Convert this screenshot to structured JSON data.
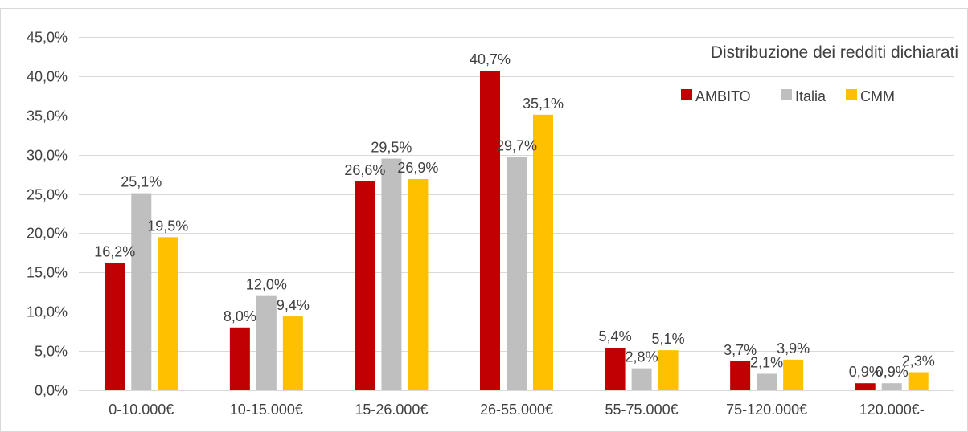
{
  "chart_data": {
    "type": "bar",
    "title": "Distribuzione dei redditi dichiarati",
    "xlabel": "",
    "ylabel": "",
    "ylim": [
      0,
      45
    ],
    "y_ticks": [
      "0,0%",
      "5,0%",
      "10,0%",
      "15,0%",
      "20,0%",
      "25,0%",
      "30,0%",
      "35,0%",
      "40,0%",
      "45,0%"
    ],
    "categories": [
      "0-10.000€",
      "10-15.000€",
      "15-26.000€",
      "26-55.000€",
      "55-75.000€",
      "75-120.000€",
      "120.000€-"
    ],
    "series": [
      {
        "name": "AMBITO",
        "color": "#c00000",
        "values": [
          16.2,
          8.0,
          26.6,
          40.7,
          5.4,
          3.7,
          0.9
        ],
        "labels": [
          "16,2%",
          "8,0%",
          "26,6%",
          "40,7%",
          "5,4%",
          "3,7%",
          "0,9%"
        ]
      },
      {
        "name": "Italia",
        "color": "#bfbfbf",
        "values": [
          25.1,
          12.0,
          29.5,
          29.7,
          2.8,
          2.1,
          0.9
        ],
        "labels": [
          "25,1%",
          "12,0%",
          "29,5%",
          "29,7%",
          "2,8%",
          "2,1%",
          "0,9%"
        ]
      },
      {
        "name": "CMM",
        "color": "#ffc000",
        "values": [
          19.5,
          9.4,
          26.9,
          35.1,
          5.1,
          3.9,
          2.3
        ],
        "labels": [
          "19,5%",
          "9,4%",
          "26,9%",
          "35,1%",
          "5,1%",
          "3,9%",
          "2,3%"
        ]
      }
    ],
    "grid": true,
    "legend_position": "top-right"
  }
}
